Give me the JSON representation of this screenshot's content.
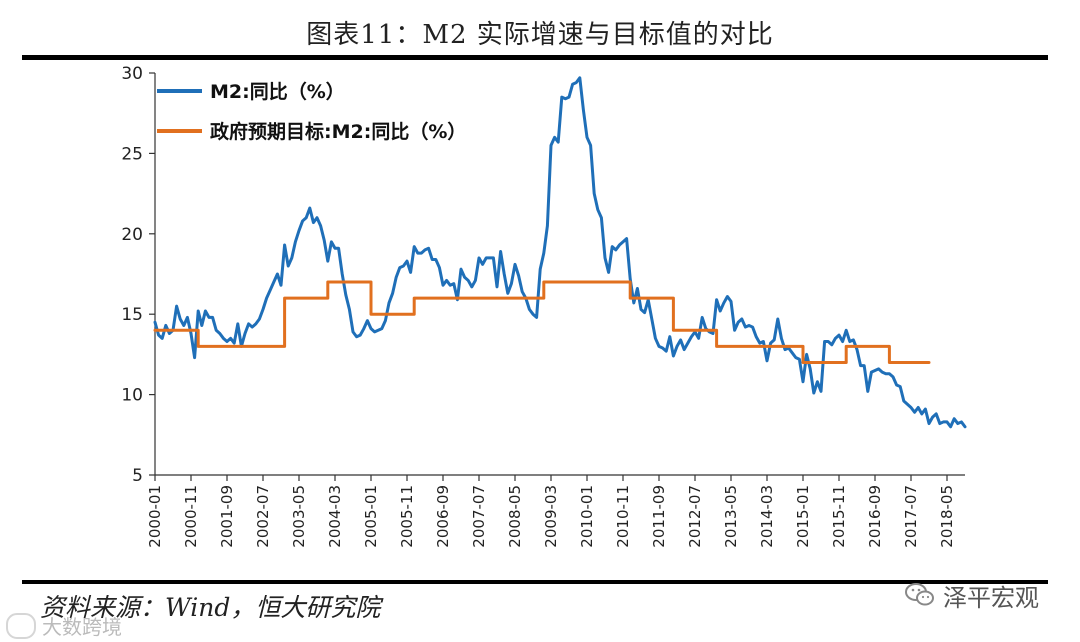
{
  "title": "图表11：M2 实际增速与目标值的对比",
  "source": "资料来源：Wind，恒大研究院",
  "brand": {
    "name": "泽平宏观",
    "icon": "wechat-icon"
  },
  "watermark": {
    "text": "大数跨境"
  },
  "chart_data": {
    "type": "line",
    "title": "M2 实际增速与目标值的对比",
    "xlabel": "",
    "ylabel": "",
    "ylim": [
      5,
      30
    ],
    "yticks": [
      5,
      10,
      15,
      20,
      25,
      30
    ],
    "x_tick_labels": [
      "2000-01",
      "2000-11",
      "2001-09",
      "2002-07",
      "2003-05",
      "2004-03",
      "2005-01",
      "2005-11",
      "2006-09",
      "2007-07",
      "2008-05",
      "2009-03",
      "2010-01",
      "2010-11",
      "2011-09",
      "2012-07",
      "2013-05",
      "2014-03",
      "2015-01",
      "2015-11",
      "2016-09",
      "2017-07",
      "2018-05"
    ],
    "x_range": [
      "2000-01",
      "2018-10"
    ],
    "grid": false,
    "legend_position": "top-left",
    "series": [
      {
        "name": "M2:同比（%）",
        "color": "#1f6fb8",
        "points": [
          [
            "2000-01",
            14.5
          ],
          [
            "2000-02",
            13.7
          ],
          [
            "2000-03",
            13.5
          ],
          [
            "2000-04",
            14.3
          ],
          [
            "2000-05",
            13.8
          ],
          [
            "2000-06",
            14.0
          ],
          [
            "2000-07",
            15.5
          ],
          [
            "2000-08",
            14.7
          ],
          [
            "2000-09",
            14.3
          ],
          [
            "2000-10",
            14.8
          ],
          [
            "2000-11",
            13.8
          ],
          [
            "2000-12",
            12.3
          ],
          [
            "2001-01",
            15.2
          ],
          [
            "2001-02",
            14.3
          ],
          [
            "2001-03",
            15.2
          ],
          [
            "2001-04",
            14.8
          ],
          [
            "2001-05",
            14.8
          ],
          [
            "2001-06",
            14.0
          ],
          [
            "2001-07",
            13.8
          ],
          [
            "2001-08",
            13.5
          ],
          [
            "2001-09",
            13.3
          ],
          [
            "2001-10",
            13.5
          ],
          [
            "2001-11",
            13.2
          ],
          [
            "2001-12",
            14.4
          ],
          [
            "2002-01",
            13.0
          ],
          [
            "2002-02",
            13.8
          ],
          [
            "2002-03",
            14.4
          ],
          [
            "2002-04",
            14.2
          ],
          [
            "2002-05",
            14.4
          ],
          [
            "2002-06",
            14.7
          ],
          [
            "2002-07",
            15.3
          ],
          [
            "2002-08",
            16.0
          ],
          [
            "2002-09",
            16.5
          ],
          [
            "2002-10",
            17.0
          ],
          [
            "2002-11",
            17.5
          ],
          [
            "2002-12",
            16.8
          ],
          [
            "2003-01",
            19.3
          ],
          [
            "2003-02",
            18.0
          ],
          [
            "2003-03",
            18.5
          ],
          [
            "2003-04",
            19.5
          ],
          [
            "2003-05",
            20.2
          ],
          [
            "2003-06",
            20.8
          ],
          [
            "2003-07",
            21.0
          ],
          [
            "2003-08",
            21.6
          ],
          [
            "2003-09",
            20.7
          ],
          [
            "2003-10",
            21.0
          ],
          [
            "2003-11",
            20.5
          ],
          [
            "2003-12",
            19.6
          ],
          [
            "2004-01",
            18.3
          ],
          [
            "2004-02",
            19.5
          ],
          [
            "2004-03",
            19.1
          ],
          [
            "2004-04",
            19.1
          ],
          [
            "2004-05",
            17.5
          ],
          [
            "2004-06",
            16.2
          ],
          [
            "2004-07",
            15.3
          ],
          [
            "2004-08",
            13.9
          ],
          [
            "2004-09",
            13.6
          ],
          [
            "2004-10",
            13.7
          ],
          [
            "2004-11",
            14.1
          ],
          [
            "2004-12",
            14.6
          ],
          [
            "2005-01",
            14.1
          ],
          [
            "2005-02",
            13.9
          ],
          [
            "2005-03",
            14.0
          ],
          [
            "2005-04",
            14.1
          ],
          [
            "2005-05",
            14.6
          ],
          [
            "2005-06",
            15.7
          ],
          [
            "2005-07",
            16.3
          ],
          [
            "2005-08",
            17.3
          ],
          [
            "2005-09",
            17.9
          ],
          [
            "2005-10",
            18.0
          ],
          [
            "2005-11",
            18.3
          ],
          [
            "2005-12",
            17.6
          ],
          [
            "2006-01",
            19.2
          ],
          [
            "2006-02",
            18.8
          ],
          [
            "2006-03",
            18.8
          ],
          [
            "2006-04",
            19.0
          ],
          [
            "2006-05",
            19.1
          ],
          [
            "2006-06",
            18.4
          ],
          [
            "2006-07",
            18.4
          ],
          [
            "2006-08",
            17.9
          ],
          [
            "2006-09",
            16.8
          ],
          [
            "2006-10",
            17.1
          ],
          [
            "2006-11",
            16.8
          ],
          [
            "2006-12",
            16.9
          ],
          [
            "2007-01",
            15.9
          ],
          [
            "2007-02",
            17.8
          ],
          [
            "2007-03",
            17.3
          ],
          [
            "2007-04",
            17.1
          ],
          [
            "2007-05",
            16.7
          ],
          [
            "2007-06",
            17.1
          ],
          [
            "2007-07",
            18.5
          ],
          [
            "2007-08",
            18.1
          ],
          [
            "2007-09",
            18.5
          ],
          [
            "2007-10",
            18.5
          ],
          [
            "2007-11",
            18.5
          ],
          [
            "2007-12",
            16.7
          ],
          [
            "2008-01",
            18.9
          ],
          [
            "2008-02",
            17.5
          ],
          [
            "2008-03",
            16.3
          ],
          [
            "2008-04",
            16.9
          ],
          [
            "2008-05",
            18.1
          ],
          [
            "2008-06",
            17.4
          ],
          [
            "2008-07",
            16.4
          ],
          [
            "2008-08",
            16.0
          ],
          [
            "2008-09",
            15.3
          ],
          [
            "2008-10",
            15.0
          ],
          [
            "2008-11",
            14.8
          ],
          [
            "2008-12",
            17.8
          ],
          [
            "2009-01",
            18.8
          ],
          [
            "2009-02",
            20.5
          ],
          [
            "2009-03",
            25.5
          ],
          [
            "2009-04",
            26.0
          ],
          [
            "2009-05",
            25.7
          ],
          [
            "2009-06",
            28.5
          ],
          [
            "2009-07",
            28.4
          ],
          [
            "2009-08",
            28.5
          ],
          [
            "2009-09",
            29.3
          ],
          [
            "2009-10",
            29.4
          ],
          [
            "2009-11",
            29.7
          ],
          [
            "2009-12",
            27.7
          ],
          [
            "2010-01",
            26.0
          ],
          [
            "2010-02",
            25.5
          ],
          [
            "2010-03",
            22.5
          ],
          [
            "2010-04",
            21.5
          ],
          [
            "2010-05",
            21.0
          ],
          [
            "2010-06",
            18.5
          ],
          [
            "2010-07",
            17.6
          ],
          [
            "2010-08",
            19.2
          ],
          [
            "2010-09",
            19.0
          ],
          [
            "2010-10",
            19.3
          ],
          [
            "2010-11",
            19.5
          ],
          [
            "2010-12",
            19.7
          ],
          [
            "2011-01",
            17.2
          ],
          [
            "2011-02",
            15.7
          ],
          [
            "2011-03",
            16.6
          ],
          [
            "2011-04",
            15.3
          ],
          [
            "2011-05",
            15.1
          ],
          [
            "2011-06",
            15.9
          ],
          [
            "2011-07",
            14.7
          ],
          [
            "2011-08",
            13.5
          ],
          [
            "2011-09",
            13.0
          ],
          [
            "2011-10",
            12.9
          ],
          [
            "2011-11",
            12.7
          ],
          [
            "2011-12",
            13.6
          ],
          [
            "2012-01",
            12.4
          ],
          [
            "2012-02",
            13.0
          ],
          [
            "2012-03",
            13.4
          ],
          [
            "2012-04",
            12.8
          ],
          [
            "2012-05",
            13.2
          ],
          [
            "2012-06",
            13.6
          ],
          [
            "2012-07",
            13.9
          ],
          [
            "2012-08",
            13.5
          ],
          [
            "2012-09",
            14.8
          ],
          [
            "2012-10",
            14.1
          ],
          [
            "2012-11",
            13.9
          ],
          [
            "2012-12",
            13.8
          ],
          [
            "2013-01",
            15.9
          ],
          [
            "2013-02",
            15.2
          ],
          [
            "2013-03",
            15.7
          ],
          [
            "2013-04",
            16.1
          ],
          [
            "2013-05",
            15.8
          ],
          [
            "2013-06",
            14.0
          ],
          [
            "2013-07",
            14.5
          ],
          [
            "2013-08",
            14.7
          ],
          [
            "2013-09",
            14.2
          ],
          [
            "2013-10",
            14.3
          ],
          [
            "2013-11",
            14.2
          ],
          [
            "2013-12",
            13.6
          ],
          [
            "2014-01",
            13.2
          ],
          [
            "2014-02",
            13.3
          ],
          [
            "2014-03",
            12.1
          ],
          [
            "2014-04",
            13.2
          ],
          [
            "2014-05",
            13.4
          ],
          [
            "2014-06",
            14.7
          ],
          [
            "2014-07",
            13.5
          ],
          [
            "2014-08",
            12.8
          ],
          [
            "2014-09",
            12.9
          ],
          [
            "2014-10",
            12.6
          ],
          [
            "2014-11",
            12.3
          ],
          [
            "2014-12",
            12.2
          ],
          [
            "2015-01",
            10.8
          ],
          [
            "2015-02",
            12.5
          ],
          [
            "2015-03",
            11.6
          ],
          [
            "2015-04",
            10.1
          ],
          [
            "2015-05",
            10.8
          ],
          [
            "2015-06",
            10.2
          ],
          [
            "2015-07",
            13.3
          ],
          [
            "2015-08",
            13.3
          ],
          [
            "2015-09",
            13.1
          ],
          [
            "2015-10",
            13.5
          ],
          [
            "2015-11",
            13.7
          ],
          [
            "2015-12",
            13.3
          ],
          [
            "2016-01",
            14.0
          ],
          [
            "2016-02",
            13.3
          ],
          [
            "2016-03",
            13.4
          ],
          [
            "2016-04",
            12.8
          ],
          [
            "2016-05",
            11.8
          ],
          [
            "2016-06",
            11.8
          ],
          [
            "2016-07",
            10.2
          ],
          [
            "2016-08",
            11.4
          ],
          [
            "2016-09",
            11.5
          ],
          [
            "2016-10",
            11.6
          ],
          [
            "2016-11",
            11.4
          ],
          [
            "2016-12",
            11.3
          ],
          [
            "2017-01",
            11.3
          ],
          [
            "2017-02",
            11.1
          ],
          [
            "2017-03",
            10.6
          ],
          [
            "2017-04",
            10.5
          ],
          [
            "2017-05",
            9.6
          ],
          [
            "2017-06",
            9.4
          ],
          [
            "2017-07",
            9.2
          ],
          [
            "2017-08",
            8.9
          ],
          [
            "2017-09",
            9.2
          ],
          [
            "2017-10",
            8.8
          ],
          [
            "2017-11",
            9.1
          ],
          [
            "2017-12",
            8.2
          ],
          [
            "2018-01",
            8.6
          ],
          [
            "2018-02",
            8.8
          ],
          [
            "2018-03",
            8.2
          ],
          [
            "2018-04",
            8.3
          ],
          [
            "2018-05",
            8.3
          ],
          [
            "2018-06",
            8.0
          ],
          [
            "2018-07",
            8.5
          ],
          [
            "2018-08",
            8.2
          ],
          [
            "2018-09",
            8.3
          ],
          [
            "2018-10",
            8.0
          ]
        ]
      },
      {
        "name": "政府预期目标:M2:同比（%）",
        "color": "#e1701f",
        "step": true,
        "points": [
          [
            "2000-01",
            14
          ],
          [
            "2001-01",
            13
          ],
          [
            "2002-01",
            13
          ],
          [
            "2003-01",
            16
          ],
          [
            "2004-01",
            17
          ],
          [
            "2005-01",
            15
          ],
          [
            "2006-01",
            16
          ],
          [
            "2007-01",
            16
          ],
          [
            "2008-01",
            16
          ],
          [
            "2009-01",
            17
          ],
          [
            "2010-01",
            17
          ],
          [
            "2011-01",
            16
          ],
          [
            "2012-01",
            14
          ],
          [
            "2013-01",
            13
          ],
          [
            "2014-01",
            13
          ],
          [
            "2015-01",
            12
          ],
          [
            "2016-01",
            13
          ],
          [
            "2017-01",
            12
          ],
          [
            "2017-12",
            12
          ]
        ]
      }
    ]
  }
}
